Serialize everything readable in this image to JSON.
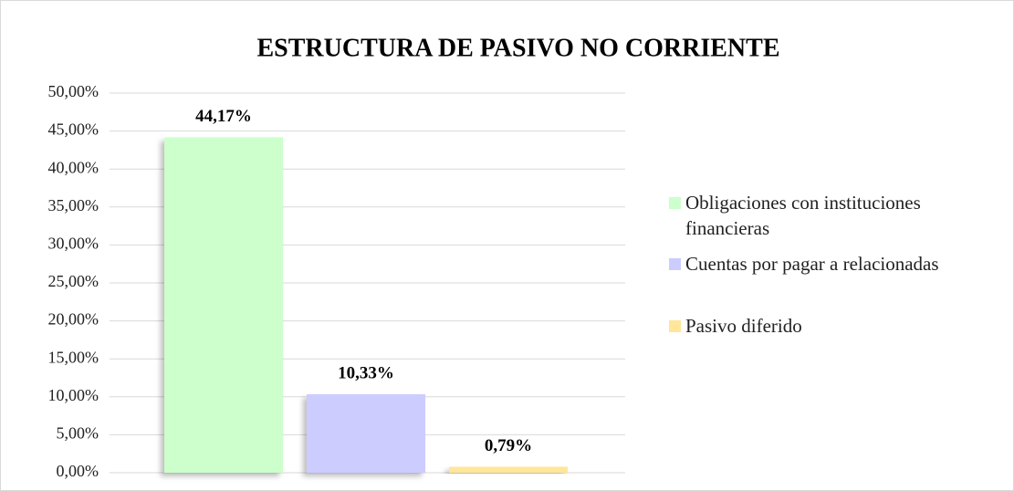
{
  "chart_data": {
    "type": "bar",
    "title": "ESTRUCTURA DE PASIVO NO CORRIENTE",
    "categories": [
      null
    ],
    "series": [
      {
        "name": "Obligaciones con instituciones financieras",
        "color": "#ccffcc",
        "values": [
          44.17
        ],
        "value_labels": [
          "44,17%"
        ]
      },
      {
        "name": "Cuentas por pagar a relacionadas",
        "color": "#ccccff",
        "values": [
          10.33
        ],
        "value_labels": [
          "10,33%"
        ]
      },
      {
        "name": "Pasivo diferido",
        "color": "#ffe699",
        "values": [
          0.79
        ],
        "value_labels": [
          "0,79%"
        ]
      }
    ],
    "ylim": [
      0,
      50
    ],
    "yticks": [
      {
        "value": 0,
        "label": "0,00%"
      },
      {
        "value": 5,
        "label": "5,00%"
      },
      {
        "value": 10,
        "label": "10,00%"
      },
      {
        "value": 15,
        "label": "15,00%"
      },
      {
        "value": 20,
        "label": "20,00%"
      },
      {
        "value": 25,
        "label": "25,00%"
      },
      {
        "value": 30,
        "label": "30,00%"
      },
      {
        "value": 35,
        "label": "35,00%"
      },
      {
        "value": 40,
        "label": "40,00%"
      },
      {
        "value": 45,
        "label": "45,00%"
      },
      {
        "value": 50,
        "label": "50,00%"
      }
    ],
    "grid": true,
    "legend": "right"
  }
}
